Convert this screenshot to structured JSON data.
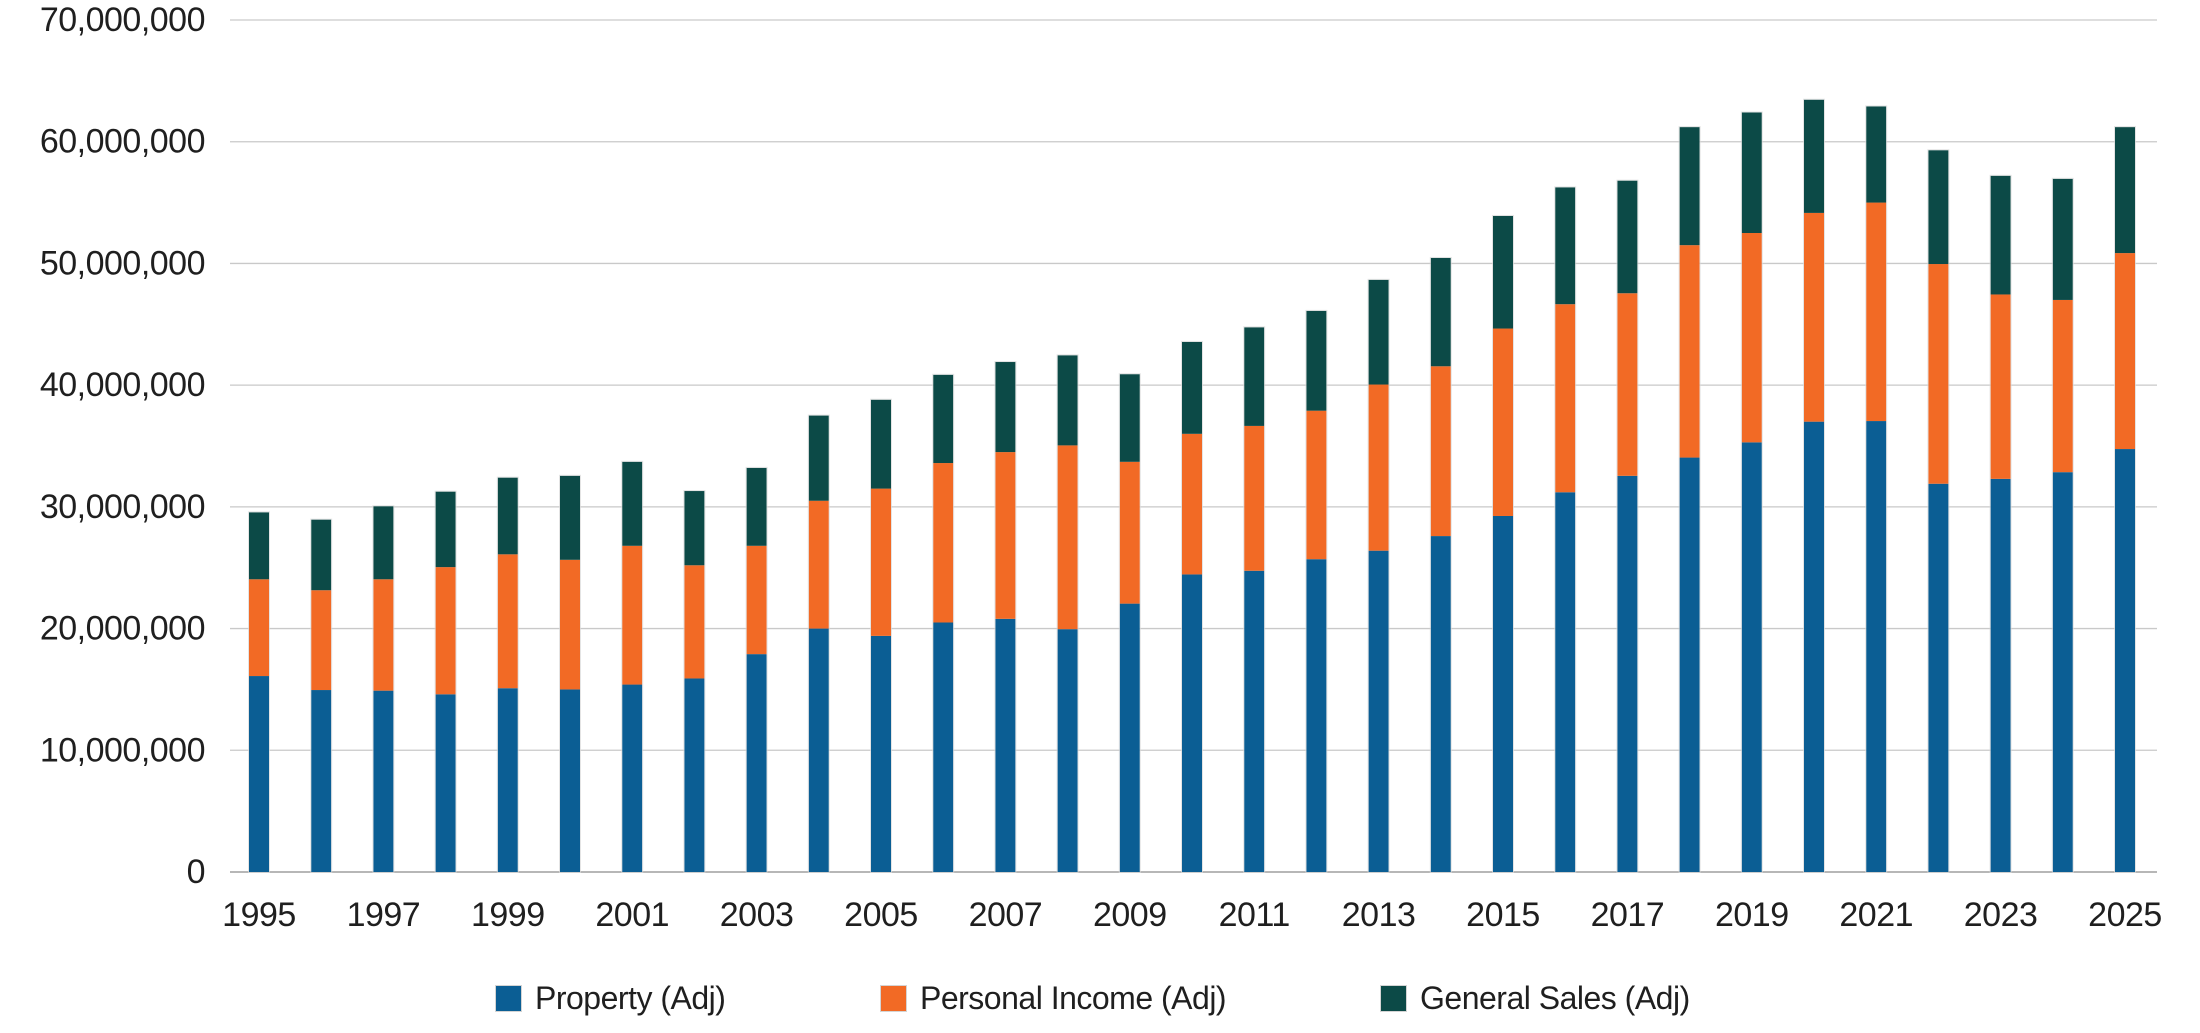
{
  "chart_data": {
    "type": "bar",
    "stacked": true,
    "title": "",
    "xlabel": "",
    "ylabel": "",
    "grid": true,
    "legend_position": "bottom",
    "ylim": [
      0,
      70000000
    ],
    "ytick_values": [
      0,
      10000000,
      20000000,
      30000000,
      40000000,
      50000000,
      60000000,
      70000000
    ],
    "ytick_labels": [
      "0",
      "10,000,000",
      "20,000,000",
      "30,000,000",
      "40,000,000",
      "50,000,000",
      "60,000,000",
      "70,000,000"
    ],
    "categories": [
      1995,
      1996,
      1997,
      1998,
      1999,
      2000,
      2001,
      2002,
      2003,
      2004,
      2005,
      2006,
      2007,
      2008,
      2009,
      2010,
      2011,
      2012,
      2013,
      2014,
      2015,
      2016,
      2017,
      2018,
      2019,
      2020,
      2021,
      2022,
      2023,
      2024,
      2025
    ],
    "xtick_labels": [
      "1995",
      "1997",
      "1999",
      "2001",
      "2003",
      "2005",
      "2007",
      "2009",
      "2011",
      "2013",
      "2015",
      "2017",
      "2019",
      "2021",
      "2023",
      "2025"
    ],
    "series": [
      {
        "name": "Property (Adj)",
        "color": "#0B5E94",
        "values": [
          16100000,
          14950000,
          14900000,
          14600000,
          15100000,
          15000000,
          15400000,
          15900000,
          17900000,
          20000000,
          19400000,
          20500000,
          20800000,
          19950000,
          22050000,
          24450000,
          24750000,
          25700000,
          26400000,
          27600000,
          29250000,
          31200000,
          32550000,
          34050000,
          35300000,
          37000000,
          37050000,
          31900000,
          32300000,
          32850000,
          34750000
        ]
      },
      {
        "name": "Personal Income (Adj)",
        "color": "#F26A25",
        "values": [
          7950000,
          8200000,
          9150000,
          10450000,
          11000000,
          10650000,
          11400000,
          9300000,
          8900000,
          10500000,
          12100000,
          13100000,
          13700000,
          15100000,
          11650000,
          11550000,
          11900000,
          12200000,
          13650000,
          13950000,
          15400000,
          15450000,
          15000000,
          17450000,
          17200000,
          17150000,
          17950000,
          18050000,
          15150000,
          14150000,
          16100000
        ]
      },
      {
        "name": "General Sales (Adj)",
        "color": "#0C4A47",
        "values": [
          5500000,
          5800000,
          6000000,
          6200000,
          6300000,
          6900000,
          6900000,
          6100000,
          6400000,
          7000000,
          7300000,
          7250000,
          7400000,
          7400000,
          7200000,
          7550000,
          8100000,
          8200000,
          8600000,
          8900000,
          9250000,
          9600000,
          9250000,
          9700000,
          9900000,
          9300000,
          7900000,
          9350000,
          9750000,
          9950000,
          10350000
        ]
      }
    ]
  },
  "colors": {
    "background": "#FFFFFF",
    "gridline": "#C9C9C9",
    "axis_line": "#9F9F9F",
    "tick_text": "#1F1F1F",
    "bar_edge": "#D9D9D9"
  }
}
